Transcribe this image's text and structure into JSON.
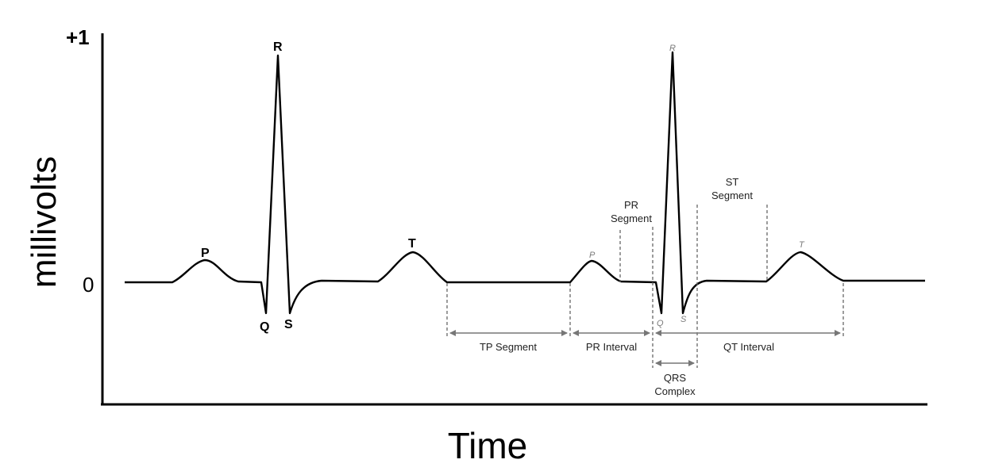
{
  "axes": {
    "y_label": "millivolts",
    "x_label": "Time",
    "y_top_tick": "+1",
    "y_zero_tick": "0"
  },
  "wave_labels": {
    "first_beat": {
      "p": "P",
      "q": "Q",
      "r": "R",
      "s": "S",
      "t": "T"
    },
    "second_beat": {
      "p": "P",
      "q": "Q",
      "r": "R",
      "s": "S",
      "t": "T"
    }
  },
  "annotations": {
    "pr_segment": "PR\nSegment",
    "st_segment": "ST\nSegment",
    "tp_segment": "TP Segment",
    "pr_interval": "PR Interval",
    "qt_interval": "QT Interval",
    "qrs_complex": "QRS\nComplex"
  },
  "colors": {
    "waveform": "#000000",
    "annotation_lines": "#666666",
    "secondary_labels": "#7a7a7a"
  }
}
